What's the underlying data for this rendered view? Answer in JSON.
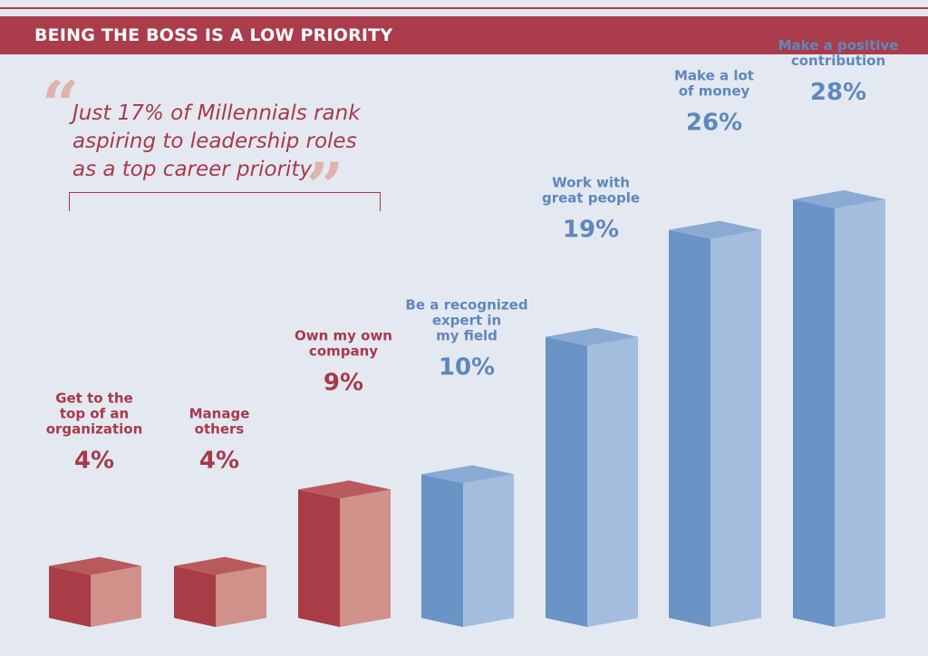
{
  "header": {
    "title": "BEING THE BOSS IS A LOW PRIORITY"
  },
  "quote": {
    "open_mark": "“",
    "lines": [
      "Just 17% of Millennials rank",
      "aspiring to leadership roles",
      "as a top career priority."
    ],
    "close_mark": "”"
  },
  "colors": {
    "red_front": "#a83c47",
    "red_side": "#d0918a",
    "red_top": "#b85a5d",
    "blue_front": "#6a93c6",
    "blue_side": "#a3bddf",
    "blue_top": "#8aaad4",
    "red_text": "#a8394a",
    "blue_text": "#5e88bd"
  },
  "chart_data": {
    "type": "bar",
    "title": "BEING THE BOSS IS A LOW PRIORITY",
    "categories": [
      "Get to the top of an organization",
      "Manage others",
      "Own my own company",
      "Be a recognized expert in my field",
      "Work with great people",
      "Make a lot of money",
      "Make a positive contribution"
    ],
    "label_lines": [
      [
        "Get to the",
        "top of an",
        "organization"
      ],
      [
        "Manage",
        "others"
      ],
      [
        "Own my own",
        "company"
      ],
      [
        "Be a recognized",
        "expert in",
        "my field"
      ],
      [
        "Work with",
        "great people"
      ],
      [
        "Make a lot",
        "of money"
      ],
      [
        "Make a positive",
        "contribution"
      ]
    ],
    "values": [
      4,
      4,
      9,
      10,
      19,
      26,
      28
    ],
    "value_labels": [
      "4%",
      "4%",
      "9%",
      "10%",
      "19%",
      "26%",
      "28%"
    ],
    "xlabel": "",
    "ylabel": "",
    "ylim": [
      0,
      30
    ],
    "grid": false,
    "legend": "none"
  }
}
